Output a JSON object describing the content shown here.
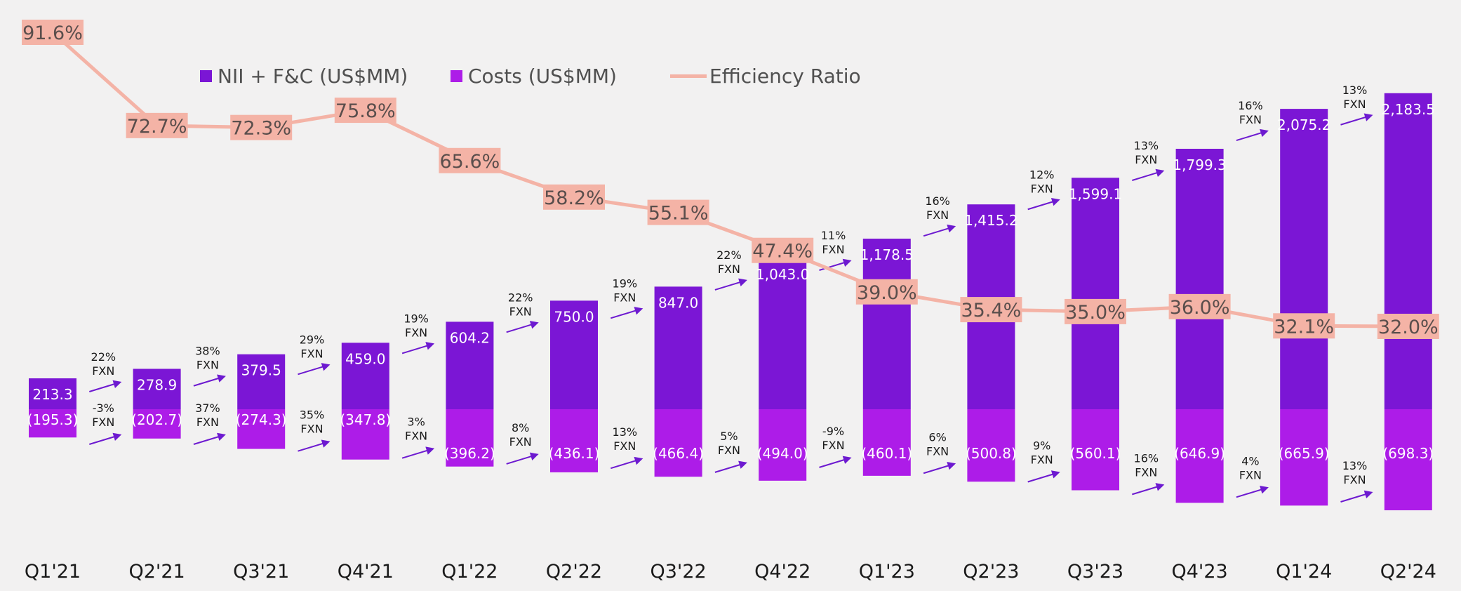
{
  "chart_data": {
    "type": "bar",
    "categories": [
      "Q1'21",
      "Q2'21",
      "Q3'21",
      "Q4'21",
      "Q1'22",
      "Q2'22",
      "Q3'22",
      "Q4'22",
      "Q1'23",
      "Q2'23",
      "Q3'23",
      "Q4'23",
      "Q1'24",
      "Q2'24"
    ],
    "series": [
      {
        "name": "NII + F&C (US$MM)",
        "type": "bar",
        "color": "#7b16d5",
        "values": [
          213.3,
          278.9,
          379.5,
          459.0,
          604.2,
          750.0,
          847.0,
          1043.0,
          1178.5,
          1415.2,
          1599.1,
          1799.3,
          2075.2,
          2183.5
        ],
        "labels": [
          "213.3",
          "278.9",
          "379.5",
          "459.0",
          "604.2",
          "750.0",
          "847.0",
          "1,043.0",
          "1,178.5",
          "1,415.2",
          "1,599.1",
          "1,799.3",
          "2,075.2",
          "2,183.5"
        ]
      },
      {
        "name": "Costs (US$MM)",
        "type": "bar",
        "color": "#ad1ce8",
        "values": [
          -195.3,
          -202.7,
          -274.3,
          -347.8,
          -396.2,
          -436.1,
          -466.4,
          -494.0,
          -460.1,
          -500.8,
          -560.1,
          -646.9,
          -665.9,
          -698.3
        ],
        "labels": [
          "(195.3)",
          "(202.7)",
          "(274.3)",
          "(347.8)",
          "(396.2)",
          "(436.1)",
          "(466.4)",
          "(494.0)",
          "(460.1)",
          "(500.8)",
          "(560.1)",
          "(646.9)",
          "(665.9)",
          "(698.3)"
        ]
      },
      {
        "name": "Efficiency Ratio",
        "type": "line",
        "color": "#f4b3a6",
        "values": [
          91.6,
          72.7,
          72.3,
          75.8,
          65.6,
          58.2,
          55.1,
          47.4,
          39.0,
          35.4,
          35.0,
          36.0,
          32.1,
          32.0
        ],
        "labels": [
          "91.6%",
          "72.7%",
          "72.3%",
          "75.8%",
          "65.6%",
          "58.2%",
          "55.1%",
          "47.4%",
          "39.0%",
          "35.4%",
          "35.0%",
          "36.0%",
          "32.1%",
          "32.0%"
        ]
      }
    ],
    "growth_nii": [
      "22%",
      "38%",
      "29%",
      "19%",
      "22%",
      "19%",
      "22%",
      "11%",
      "16%",
      "12%",
      "13%",
      "16%",
      "13%"
    ],
    "growth_costs": [
      "-3%",
      "37%",
      "35%",
      "3%",
      "8%",
      "13%",
      "5%",
      "-9%",
      "6%",
      "9%",
      "16%",
      "4%",
      "13%"
    ],
    "growth_suffix": "FXN",
    "legend_position": "top",
    "grid": false
  },
  "colors": {
    "nii": "#7b16d5",
    "costs": "#ad1ce8",
    "ratio": "#f4b3a6",
    "ratio_text": "#5a4e4c",
    "arrow": "#6d1ad0",
    "text": "#1a1a1a"
  }
}
